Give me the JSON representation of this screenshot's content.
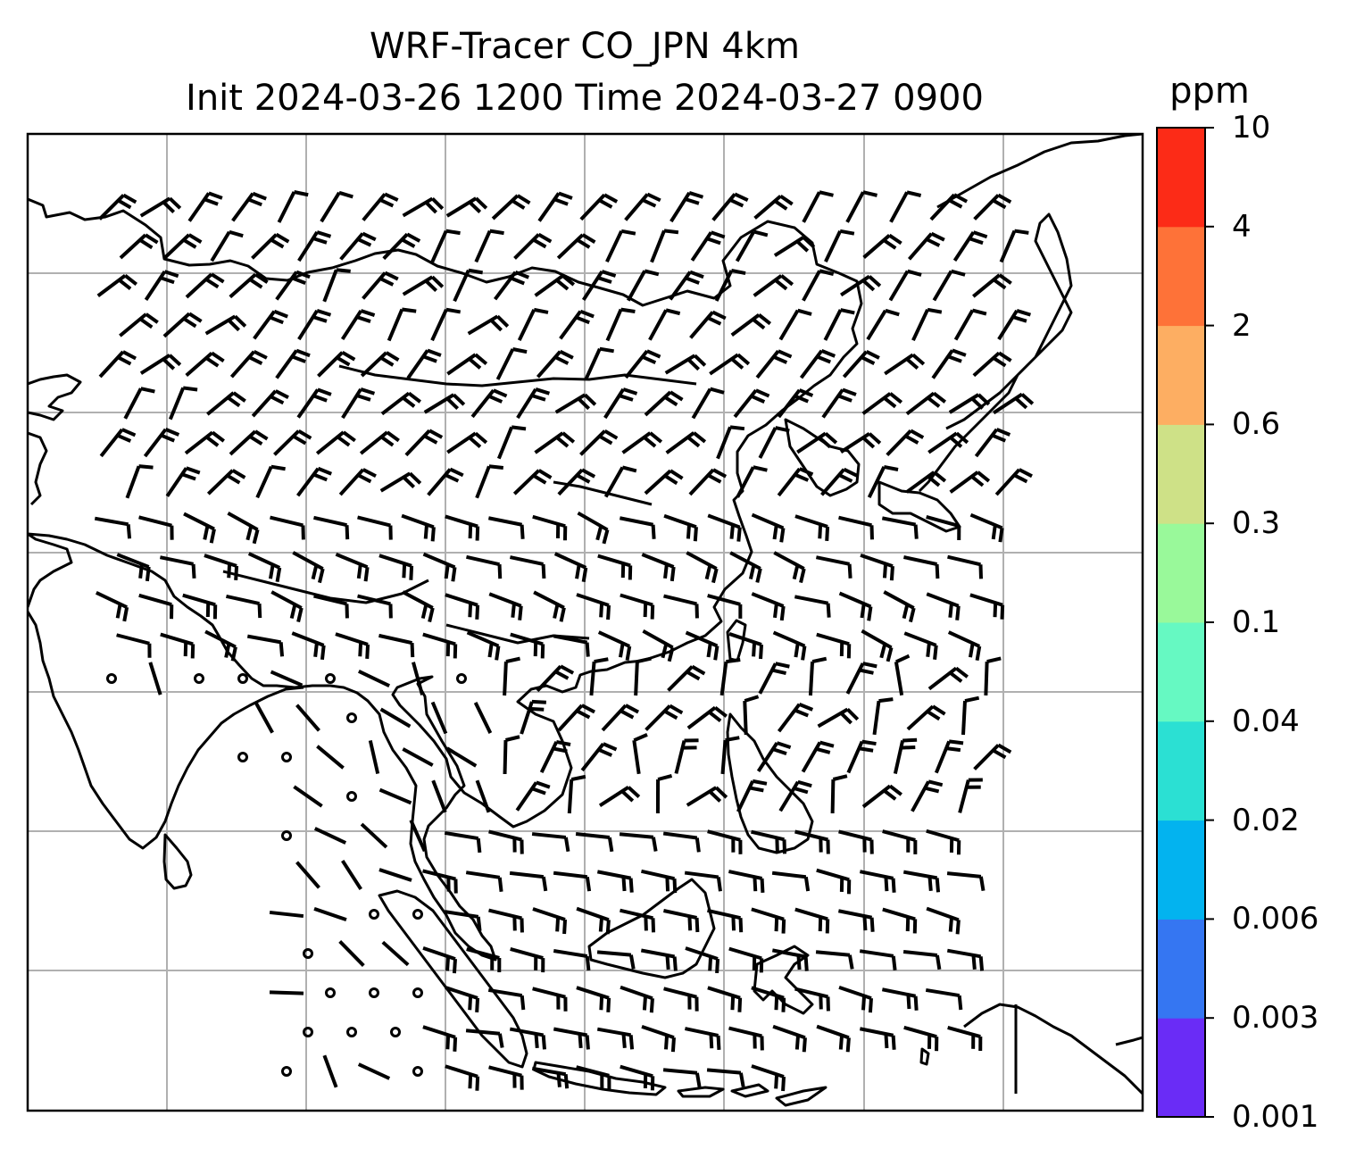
{
  "title": {
    "line1": "WRF-Tracer CO_JPN 4km",
    "line2": "Init 2024-03-26 1200 Time 2024-03-27 0900"
  },
  "colorbar": {
    "unit": "ppm",
    "levels": [
      "0.001",
      "0.003",
      "0.006",
      "0.02",
      "0.04",
      "0.1",
      "0.3",
      "0.6",
      "2",
      "4",
      "10"
    ],
    "colors": [
      "#6a2cf6",
      "#3576f2",
      "#03b3ef",
      "#2be0d3",
      "#66f9c2",
      "#99f99a",
      "#cee187",
      "#fdae62",
      "#fe7238",
      "#fc2b17"
    ]
  },
  "map": {
    "gridlines": true,
    "coastline_color": "#000000",
    "gridline_color": "#b0b0b0",
    "barb_color": "#000000"
  }
}
